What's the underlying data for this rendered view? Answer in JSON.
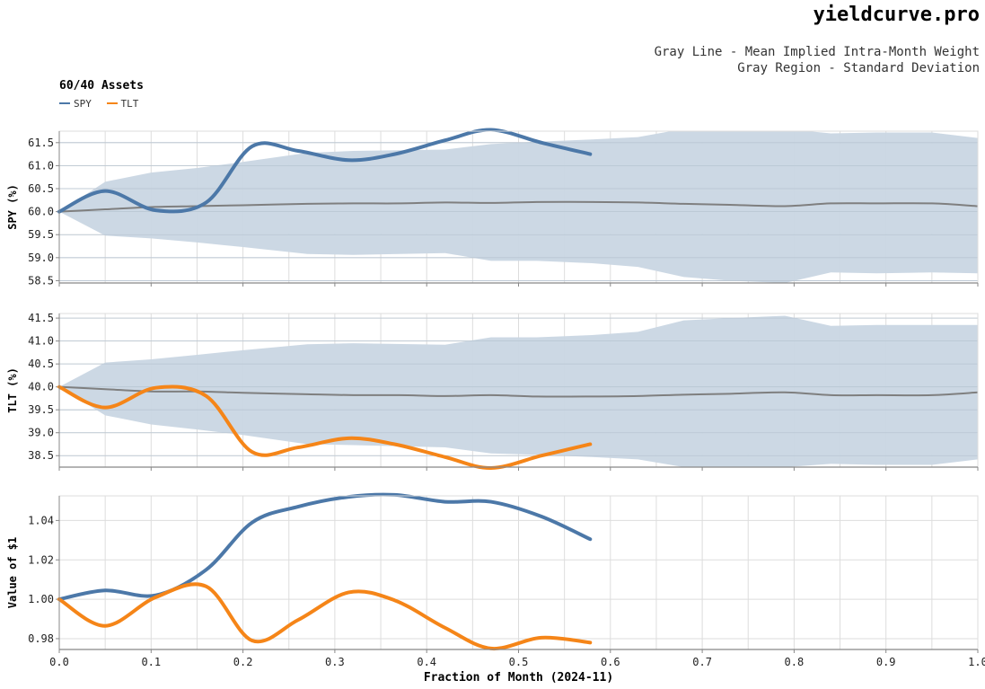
{
  "header": {
    "brand": "yieldcurve.pro",
    "subtitle_line1": "Gray Line - Mean Implied Intra-Month Weight",
    "subtitle_line2": "Gray Region - Standard Deviation"
  },
  "legend": {
    "title": "60/40 Assets",
    "items": [
      {
        "label": "SPY",
        "color": "#4c78a8"
      },
      {
        "label": "TLT",
        "color": "#f58518"
      }
    ]
  },
  "colors": {
    "band": "#c9d6e3",
    "mean_line": "#7f7f7f",
    "grid": "#dddddd",
    "axis": "#888888"
  },
  "chart_data": [
    {
      "type": "area",
      "ylabel": "SPY (%)",
      "xlim": [
        0.0,
        1.0
      ],
      "ylim": [
        58.45,
        61.75
      ],
      "yticks": [
        58.5,
        59.0,
        59.5,
        60.0,
        60.5,
        61.0,
        61.5
      ],
      "ytick_labels": [
        "58.5",
        "59.0",
        "59.5",
        "60.0",
        "60.5",
        "61.0",
        "61.5"
      ],
      "band_x": [
        0.0,
        0.05,
        0.1,
        0.15,
        0.2,
        0.27,
        0.32,
        0.42,
        0.47,
        0.52,
        0.58,
        0.63,
        0.68,
        0.73,
        0.79,
        0.84,
        0.89,
        0.95,
        1.0
      ],
      "band_upper": [
        60.0,
        60.65,
        60.85,
        60.95,
        61.08,
        61.28,
        61.32,
        61.35,
        61.47,
        61.52,
        61.57,
        61.62,
        61.8,
        61.8,
        61.8,
        61.7,
        61.72,
        61.72,
        61.6
      ],
      "band_lower": [
        60.0,
        59.48,
        59.42,
        59.33,
        59.23,
        59.08,
        59.06,
        59.1,
        58.93,
        58.93,
        58.88,
        58.8,
        58.58,
        58.5,
        58.45,
        58.68,
        58.66,
        58.68,
        58.66
      ],
      "mean_x": [
        0.0,
        0.05,
        0.1,
        0.15,
        0.2,
        0.27,
        0.32,
        0.37,
        0.42,
        0.47,
        0.52,
        0.58,
        0.63,
        0.68,
        0.73,
        0.79,
        0.84,
        0.89,
        0.95,
        1.0
      ],
      "mean_y": [
        60.0,
        60.05,
        60.1,
        60.12,
        60.14,
        60.17,
        60.18,
        60.18,
        60.2,
        60.19,
        60.21,
        60.21,
        60.2,
        60.17,
        60.15,
        60.12,
        60.18,
        60.18,
        60.18,
        60.12
      ],
      "series": [
        {
          "name": "SPY",
          "x": [
            0.0,
            0.05,
            0.105,
            0.16,
            0.21,
            0.26,
            0.315,
            0.365,
            0.42,
            0.47,
            0.525,
            0.578
          ],
          "y": [
            60.0,
            60.45,
            60.03,
            60.2,
            61.42,
            61.32,
            61.12,
            61.25,
            61.55,
            61.78,
            61.5,
            61.25
          ]
        }
      ]
    },
    {
      "type": "area",
      "ylabel": "TLT (%)",
      "xlim": [
        0.0,
        1.0
      ],
      "ylim": [
        38.25,
        41.6
      ],
      "yticks": [
        38.5,
        39.0,
        39.5,
        40.0,
        40.5,
        41.0,
        41.5
      ],
      "ytick_labels": [
        "38.5",
        "39.0",
        "39.5",
        "40.0",
        "40.5",
        "41.0",
        "41.5"
      ],
      "band_x": [
        0.0,
        0.05,
        0.1,
        0.15,
        0.2,
        0.27,
        0.32,
        0.42,
        0.47,
        0.52,
        0.58,
        0.63,
        0.68,
        0.73,
        0.79,
        0.84,
        0.89,
        0.95,
        1.0
      ],
      "band_upper": [
        40.0,
        40.53,
        40.6,
        40.7,
        40.8,
        40.93,
        40.95,
        40.92,
        41.08,
        41.08,
        41.13,
        41.2,
        41.45,
        41.5,
        41.55,
        41.33,
        41.35,
        41.35,
        41.35
      ],
      "band_lower": [
        40.0,
        39.38,
        39.18,
        39.07,
        38.95,
        38.75,
        38.73,
        38.68,
        38.55,
        38.52,
        38.47,
        38.42,
        38.25,
        38.25,
        38.25,
        38.32,
        38.3,
        38.3,
        38.42
      ],
      "mean_x": [
        0.0,
        0.05,
        0.1,
        0.15,
        0.2,
        0.27,
        0.32,
        0.37,
        0.42,
        0.47,
        0.52,
        0.58,
        0.63,
        0.68,
        0.73,
        0.79,
        0.84,
        0.89,
        0.95,
        1.0
      ],
      "mean_y": [
        40.0,
        39.95,
        39.9,
        39.9,
        39.87,
        39.84,
        39.82,
        39.82,
        39.8,
        39.82,
        39.79,
        39.79,
        39.8,
        39.83,
        39.85,
        39.88,
        39.82,
        39.82,
        39.82,
        39.88
      ],
      "series": [
        {
          "name": "TLT",
          "x": [
            0.0,
            0.05,
            0.105,
            0.16,
            0.21,
            0.26,
            0.315,
            0.365,
            0.42,
            0.47,
            0.525,
            0.578
          ],
          "y": [
            40.0,
            39.55,
            39.98,
            39.8,
            38.58,
            38.68,
            38.88,
            38.75,
            38.47,
            38.23,
            38.5,
            38.75
          ]
        }
      ]
    },
    {
      "type": "line",
      "ylabel": "Value of $1",
      "xlabel": "Fraction of Month (2024-11)",
      "xlim": [
        0.0,
        1.0
      ],
      "ylim": [
        0.9745,
        1.0525
      ],
      "yticks": [
        0.98,
        1.0,
        1.02,
        1.04
      ],
      "ytick_labels": [
        "0.98",
        "1.00",
        "1.02",
        "1.04"
      ],
      "xticks": [
        0.0,
        0.1,
        0.2,
        0.3,
        0.4,
        0.5,
        0.6,
        0.7,
        0.8,
        0.9,
        1.0
      ],
      "xtick_labels": [
        "0.0",
        "0.1",
        "0.2",
        "0.3",
        "0.4",
        "0.5",
        "0.6",
        "0.7",
        "0.8",
        "0.9",
        "1.0"
      ],
      "series": [
        {
          "name": "SPY",
          "x": [
            0.0,
            0.05,
            0.105,
            0.16,
            0.21,
            0.26,
            0.315,
            0.365,
            0.42,
            0.47,
            0.525,
            0.578
          ],
          "y": [
            1.0,
            1.0045,
            1.002,
            1.015,
            1.039,
            1.047,
            1.052,
            1.053,
            1.0495,
            1.0495,
            1.042,
            1.0305
          ]
        },
        {
          "name": "TLT",
          "x": [
            0.0,
            0.05,
            0.105,
            0.16,
            0.21,
            0.26,
            0.315,
            0.365,
            0.42,
            0.47,
            0.525,
            0.578
          ],
          "y": [
            1.0,
            0.9865,
            1.001,
            1.0065,
            0.979,
            0.9895,
            1.0035,
            0.9995,
            0.9855,
            0.975,
            0.9805,
            0.978
          ]
        }
      ]
    }
  ]
}
